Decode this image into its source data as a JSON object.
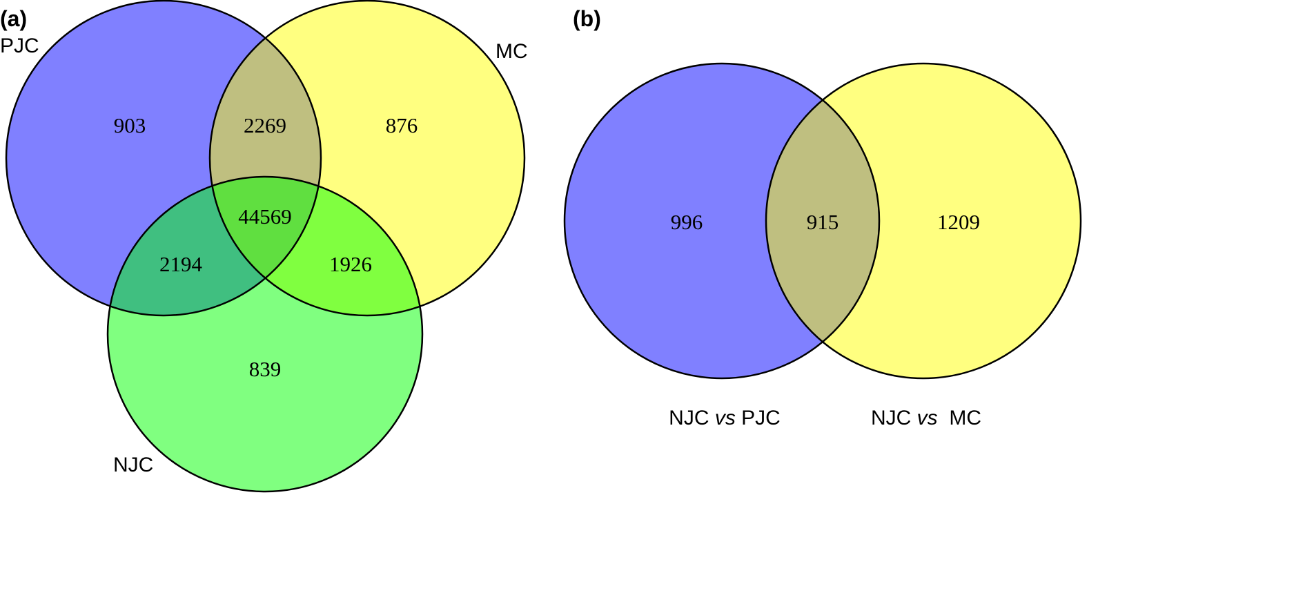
{
  "panel_a": {
    "label": "(a)",
    "sets": {
      "pjc": {
        "name": "PJC",
        "color": "#8080ff"
      },
      "mc": {
        "name": "MC",
        "color": "#ffff80"
      },
      "njc": {
        "name": "NJC",
        "color": "#80ff80"
      }
    },
    "regions": {
      "pjc_only": "903",
      "pjc_mc": "2269",
      "mc_only": "876",
      "all_three": "44569",
      "pjc_njc": "2194",
      "mc_njc": "1926",
      "njc_only": "839"
    },
    "overlap_colors": {
      "pjc_mc": "#bfbf80",
      "pjc_njc": "#40bf80",
      "mc_njc": "#80ff40",
      "all_three": "#60df40"
    }
  },
  "panel_b": {
    "label": "(b)",
    "sets": {
      "left": {
        "prefix": "NJC ",
        "italic": "vs",
        "suffix": " PJC",
        "color": "#8080ff"
      },
      "right": {
        "prefix": "NJC ",
        "italic": "vs",
        "suffix": "  MC",
        "color": "#ffff80"
      }
    },
    "regions": {
      "left_only": "996",
      "overlap": "915",
      "right_only": "1209"
    },
    "overlap_color": "#bfbf80"
  }
}
